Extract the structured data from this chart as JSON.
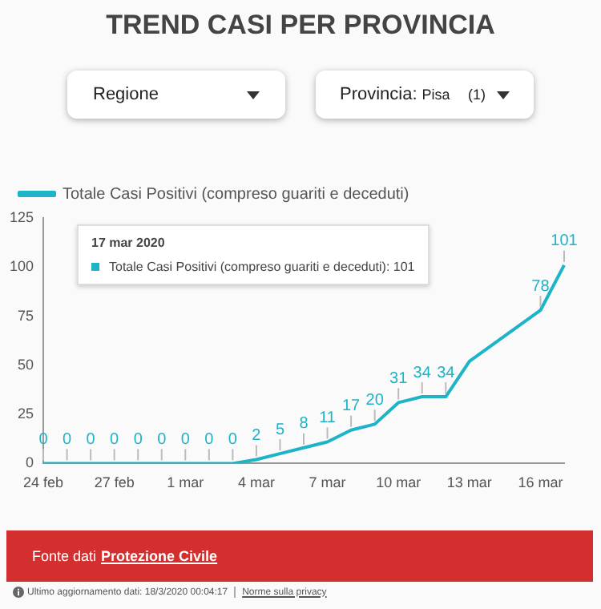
{
  "chart_data": {
    "type": "line",
    "title": "TREND CASI PER PROVINCIA",
    "categories": [
      "24 feb",
      null,
      null,
      "27 feb",
      null,
      null,
      "1 mar",
      null,
      null,
      "4 mar",
      null,
      null,
      "7 mar",
      null,
      null,
      "10 mar",
      null,
      null,
      "13 mar",
      null,
      null,
      "16 mar",
      null
    ],
    "series": [
      {
        "name": "Totale Casi Positivi (compreso guariti e deceduti)",
        "color": "#1eb4c8",
        "values": [
          0,
          0,
          0,
          0,
          0,
          0,
          0,
          0,
          0,
          2,
          5,
          8,
          11,
          17,
          20,
          31,
          34,
          34,
          52,
          null,
          null,
          78,
          101
        ],
        "value_labels": [
          "0",
          "0",
          "0",
          "0",
          "0",
          "0",
          "0",
          "0",
          "0",
          "2",
          "5",
          "8",
          "11",
          "17",
          "20",
          "31",
          "34",
          "34",
          null,
          null,
          null,
          "78",
          "101"
        ]
      }
    ],
    "ylim": [
      0,
      125
    ],
    "yticks": [
      0,
      25,
      50,
      75,
      100,
      125
    ],
    "grid": false,
    "legend": "top left",
    "marker": "none",
    "line_style": "solid",
    "annotations": [
      "Regione",
      "Provincia:",
      "Pisa",
      "(1)",
      "17 mar 2020",
      "Totale Casi Positivi (compreso guariti e deceduti): 101",
      "Fonte dati",
      "Protezione Civile",
      "Ultimo aggiornamento dati: 18/3/2020 00:04:17",
      "Norme sulla privacy"
    ]
  }
}
